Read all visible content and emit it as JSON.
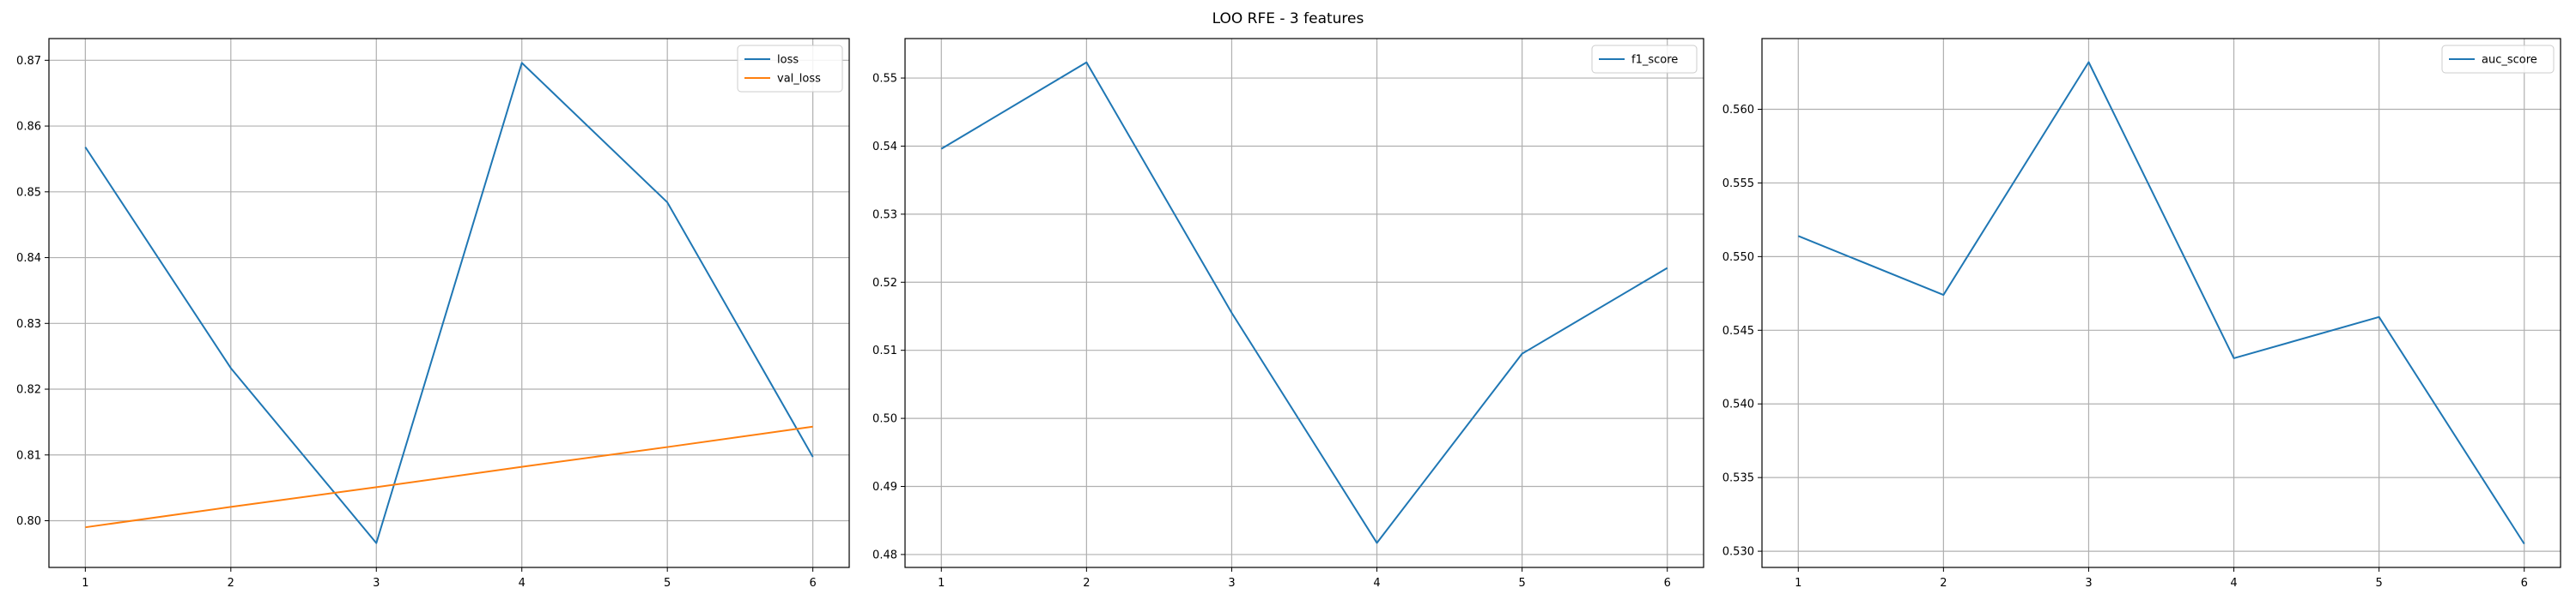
{
  "title": "LOO RFE - 3 features",
  "colors": {
    "blue": "#1f77b4",
    "orange": "#ff7f0e",
    "grid": "#b0b0b0"
  },
  "chart_data": [
    {
      "type": "line",
      "x": [
        1,
        2,
        3,
        4,
        5,
        6
      ],
      "series": [
        {
          "name": "loss",
          "values": [
            0.8568,
            0.8232,
            0.7966,
            0.8696,
            0.8484,
            0.8097
          ]
        },
        {
          "name": "val_loss",
          "values": [
            0.799,
            0.8021,
            0.8051,
            0.8082,
            0.8112,
            0.8143
          ]
        }
      ],
      "xticks": [
        1,
        2,
        3,
        4,
        5,
        6
      ],
      "yticks": [
        0.8,
        0.81,
        0.82,
        0.83,
        0.84,
        0.85,
        0.86,
        0.87
      ],
      "ytick_labels": [
        "0.80",
        "0.81",
        "0.82",
        "0.83",
        "0.84",
        "0.85",
        "0.86",
        "0.87"
      ],
      "xlim": [
        0.75,
        6.25
      ],
      "ylim": [
        0.7929,
        0.8733
      ],
      "grid": true,
      "legend": "upper right"
    },
    {
      "type": "line",
      "x": [
        1,
        2,
        3,
        4,
        5,
        6
      ],
      "series": [
        {
          "name": "f1_score",
          "values": [
            0.5396,
            0.5523,
            0.5155,
            0.4817,
            0.5095,
            0.5221
          ]
        }
      ],
      "xticks": [
        1,
        2,
        3,
        4,
        5,
        6
      ],
      "yticks": [
        0.48,
        0.49,
        0.5,
        0.51,
        0.52,
        0.53,
        0.54,
        0.55
      ],
      "ytick_labels": [
        "0.48",
        "0.49",
        "0.50",
        "0.51",
        "0.52",
        "0.53",
        "0.54",
        "0.55"
      ],
      "xlim": [
        0.75,
        6.25
      ],
      "ylim": [
        0.4781,
        0.5558
      ],
      "grid": true,
      "legend": "upper right"
    },
    {
      "type": "line",
      "x": [
        1,
        2,
        3,
        4,
        5,
        6
      ],
      "series": [
        {
          "name": "auc_score",
          "values": [
            0.5514,
            0.5474,
            0.5632,
            0.5431,
            0.5459,
            0.5305
          ]
        }
      ],
      "xticks": [
        1,
        2,
        3,
        4,
        5,
        6
      ],
      "yticks": [
        0.53,
        0.535,
        0.54,
        0.545,
        0.55,
        0.555,
        0.56
      ],
      "ytick_labels": [
        "0.530",
        "0.535",
        "0.540",
        "0.545",
        "0.550",
        "0.555",
        "0.560"
      ],
      "xlim": [
        0.75,
        6.25
      ],
      "ylim": [
        0.5289,
        0.5648
      ],
      "grid": true,
      "legend": "upper right"
    }
  ]
}
